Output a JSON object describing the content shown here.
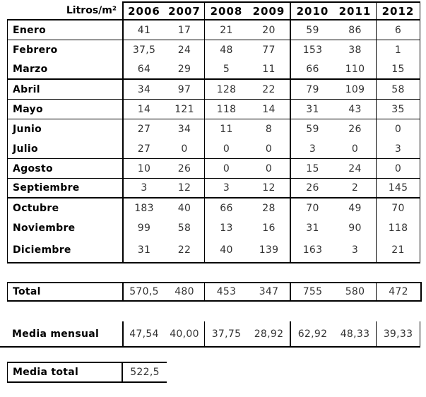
{
  "table": {
    "corner_label": "Litros/m²",
    "years": [
      "2006",
      "2007",
      "2008",
      "2009",
      "2010",
      "2011",
      "2012"
    ],
    "months": [
      {
        "label": "Enero",
        "values": [
          "41",
          "17",
          "21",
          "20",
          "59",
          "86",
          "6"
        ]
      },
      {
        "label": "Febrero",
        "values": [
          "37,5",
          "24",
          "48",
          "77",
          "153",
          "38",
          "1"
        ]
      },
      {
        "label": "Marzo",
        "values": [
          "64",
          "29",
          "5",
          "11",
          "66",
          "110",
          "15"
        ]
      },
      {
        "label": "Abril",
        "values": [
          "34",
          "97",
          "128",
          "22",
          "79",
          "109",
          "58"
        ]
      },
      {
        "label": "Mayo",
        "values": [
          "14",
          "121",
          "118",
          "14",
          "31",
          "43",
          "35"
        ]
      },
      {
        "label": "Junio",
        "values": [
          "27",
          "34",
          "11",
          "8",
          "59",
          "26",
          "0"
        ]
      },
      {
        "label": "Julio",
        "values": [
          "27",
          "0",
          "0",
          "0",
          "3",
          "0",
          "3"
        ]
      },
      {
        "label": "Agosto",
        "values": [
          "10",
          "26",
          "0",
          "0",
          "15",
          "24",
          "0"
        ]
      },
      {
        "label": "Septiembre",
        "values": [
          "3",
          "12",
          "3",
          "12",
          "26",
          "2",
          "145"
        ]
      },
      {
        "label": "Octubre",
        "values": [
          "183",
          "40",
          "66",
          "28",
          "70",
          "49",
          "70"
        ]
      },
      {
        "label": "Noviembre",
        "values": [
          "99",
          "58",
          "13",
          "16",
          "31",
          "90",
          "118"
        ]
      },
      {
        "label": "Diciembre",
        "values": [
          "31",
          "22",
          "40",
          "139",
          "163",
          "3",
          "21"
        ]
      }
    ]
  },
  "total_row": {
    "label": "Total",
    "values": [
      "570,5",
      "480",
      "453",
      "347",
      "755",
      "580",
      "472"
    ]
  },
  "media_mensual_row": {
    "label": "Media mensual",
    "values": [
      "47,54",
      "40,00",
      "37,75",
      "28,92",
      "62,92",
      "48,33",
      "39,33"
    ]
  },
  "media_total_row": {
    "label": "Media total",
    "value": "522,5"
  },
  "chart_data": {
    "type": "table",
    "title": "Litros/m²",
    "columns": [
      "2006",
      "2007",
      "2008",
      "2009",
      "2010",
      "2011",
      "2012"
    ],
    "row_labels": [
      "Enero",
      "Febrero",
      "Marzo",
      "Abril",
      "Mayo",
      "Junio",
      "Julio",
      "Agosto",
      "Septiembre",
      "Octubre",
      "Noviembre",
      "Diciembre"
    ],
    "rows": [
      [
        41,
        17,
        21,
        20,
        59,
        86,
        6
      ],
      [
        37.5,
        24,
        48,
        77,
        153,
        38,
        1
      ],
      [
        64,
        29,
        5,
        11,
        66,
        110,
        15
      ],
      [
        34,
        97,
        128,
        22,
        79,
        109,
        58
      ],
      [
        14,
        121,
        118,
        14,
        31,
        43,
        35
      ],
      [
        27,
        34,
        11,
        8,
        59,
        26,
        0
      ],
      [
        27,
        0,
        0,
        0,
        3,
        0,
        3
      ],
      [
        10,
        26,
        0,
        0,
        15,
        24,
        0
      ],
      [
        3,
        12,
        3,
        12,
        26,
        2,
        145
      ],
      [
        183,
        40,
        66,
        28,
        70,
        49,
        70
      ],
      [
        99,
        58,
        13,
        16,
        31,
        90,
        118
      ],
      [
        31,
        22,
        40,
        139,
        163,
        3,
        21
      ]
    ],
    "total": [
      570.5,
      480,
      453,
      347,
      755,
      580,
      472
    ],
    "media_mensual": [
      47.54,
      40.0,
      37.75,
      28.92,
      62.92,
      48.33,
      39.33
    ],
    "media_total": 522.5
  }
}
